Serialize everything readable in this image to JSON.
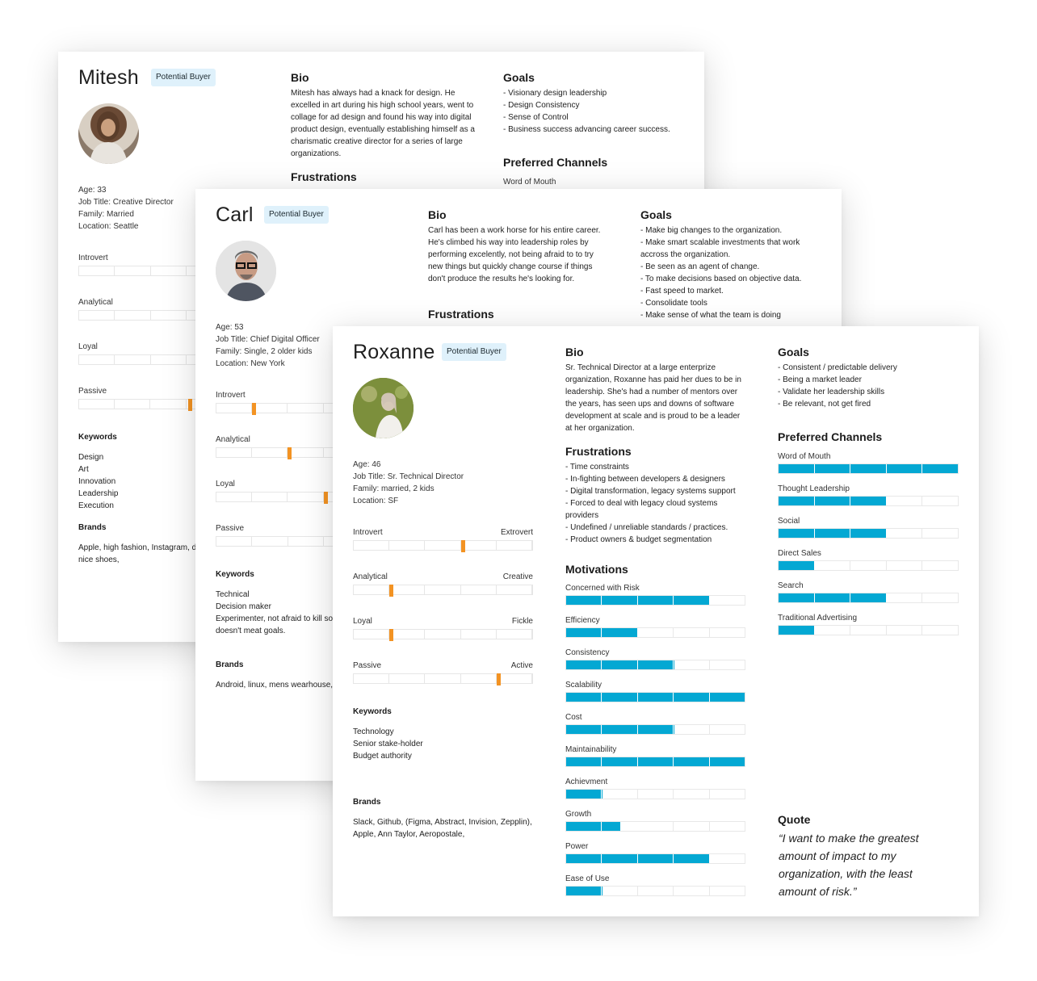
{
  "colors": {
    "accent_bar": "#04a8d3",
    "trait_marker": "#f39323",
    "badge_bg": "#dff1fb"
  },
  "mitesh": {
    "name": "Mitesh",
    "badge": "Potential Buyer",
    "age": "Age: 33",
    "job": "Job Title: Creative Director",
    "family": "Family: Married",
    "location": "Location: Seattle",
    "traits": [
      {
        "label": "Introvert",
        "value": null
      },
      {
        "label": "Analytical",
        "value": null
      },
      {
        "label": "Loyal",
        "value": null
      },
      {
        "label": "Passive",
        "value": 0.61
      }
    ],
    "keywords_title": "Keywords",
    "keywords": [
      "Design",
      "Art",
      "Innovation",
      "Leadership",
      "Execution"
    ],
    "brands_title": "Brands",
    "brands": "Apple, high fashion, Instagram, di nice shoes,",
    "bio_title": "Bio",
    "bio": "Mitesh has always had a knack for design. He excelled in art during his high school years, went to collage for ad design and found his way into digital product design, eventually establishing himself as a charismatic creative director for a series of large organizations.",
    "frustrations_title": "Frustrations",
    "goals_title": "Goals",
    "goals": [
      "- Visionary design leadership",
      "- Design Consistency",
      "- Sense of Control",
      "- Business success advancing career success."
    ],
    "channels_title": "Preferred Channels",
    "channels": [
      "Word of Mouth"
    ]
  },
  "carl": {
    "name": "Carl",
    "badge": "Potential Buyer",
    "age": "Age: 53",
    "job": "Job Title: Chief Digital Officer",
    "family": "Family: Single, 2 older kids",
    "location": "Location: New York",
    "traits": [
      {
        "label": "Introvert",
        "value": 0.2
      },
      {
        "label": "Analytical",
        "value": 0.4
      },
      {
        "label": "Loyal",
        "value": 0.6
      },
      {
        "label": "Passive",
        "value": null
      }
    ],
    "keywords_title": "Keywords",
    "keywords": [
      "Technical",
      "Decision maker",
      "Experimenter, not afraid to kill so",
      "doesn't meat goals."
    ],
    "brands_title": "Brands",
    "brands": "Android, linux, mens wearhouse, '",
    "bio_title": "Bio",
    "bio": "Carl has been a work horse for his entire career. He's climbed his way into leadership roles by performing excelently, not being afraid to to try new things but quickly change course if things don't produce the results he's looking for.",
    "frustrations_title": "Frustrations",
    "goals_title": "Goals",
    "goals": [
      "- Make big changes to the organization.",
      "- Make smart scalable investments that work",
      "accross the organization.",
      "- Be seen as an agent of change.",
      "- To make decisions based on objective data.",
      "- Fast speed to market.",
      "- Consolidate tools",
      "- Make sense of what the team is doing"
    ]
  },
  "roxanne": {
    "name": "Roxanne",
    "badge": "Potential Buyer",
    "age": "Age: 46",
    "job": "Job Title: Sr. Technical Director",
    "family": "Family: married, 2 kids",
    "location": "Location: SF",
    "traits": [
      {
        "left": "Introvert",
        "right": "Extrovert",
        "value": 0.6
      },
      {
        "left": "Analytical",
        "right": "Creative",
        "value": 0.2
      },
      {
        "left": "Loyal",
        "right": "Fickle",
        "value": 0.2
      },
      {
        "left": "Passive",
        "right": "Active",
        "value": 0.8
      }
    ],
    "keywords_title": "Keywords",
    "keywords": [
      "Technology",
      "Senior stake-holder",
      "Budget authority"
    ],
    "brands_title": "Brands",
    "brands": "Slack, Github, (Figma, Abstract, Invision, Zepplin), Apple, Ann Taylor, Aeropostale,",
    "bio_title": "Bio",
    "bio": "Sr. Technical Director at a large enterprize organization, Roxanne has paid her dues to be in leadership. She's had a number of mentors over the years, has seen ups and downs of software development at scale and is proud to be a leader at her organization.",
    "frustrations_title": "Frustrations",
    "frustrations": [
      "- Time constraints",
      "- In-fighting between developers & designers",
      "- Digital transformation, legacy systems support",
      "- Forced to deal with legacy cloud systems",
      "providers",
      "- Undefined / unreliable standards / practices.",
      "- Product owners & budget segmentation"
    ],
    "motivations_title": "Motivations",
    "motivations": [
      {
        "label": "Concerned with Risk",
        "value": 0.8
      },
      {
        "label": "Efficiency",
        "value": 0.4
      },
      {
        "label": "Consistency",
        "value": 0.6
      },
      {
        "label": "Scalability",
        "value": 1.0
      },
      {
        "label": "Cost",
        "value": 0.6
      },
      {
        "label": "Maintainability",
        "value": 1.0
      },
      {
        "label": "Achievment",
        "value": 0.2
      },
      {
        "label": "Growth",
        "value": 0.3
      },
      {
        "label": "Power",
        "value": 0.8
      },
      {
        "label": "Ease of Use",
        "value": 0.2
      }
    ],
    "goals_title": "Goals",
    "goals": [
      "- Consistent / predictable delivery",
      "- Being a market leader",
      "- Validate her leadership skills",
      "- Be relevant, not get fired"
    ],
    "channels_title": "Preferred Channels",
    "channels": [
      {
        "label": "Word of Mouth",
        "value": 1.0
      },
      {
        "label": "Thought Leadership",
        "value": 0.6
      },
      {
        "label": "Social",
        "value": 0.6
      },
      {
        "label": "Direct Sales",
        "value": 0.2
      },
      {
        "label": "Search",
        "value": 0.6
      },
      {
        "label": "Traditional Advertising",
        "value": 0.2
      }
    ],
    "quote_title": "Quote",
    "quote": "“I want to make the greatest amount of impact to my organization, with the least amount of risk.”"
  }
}
